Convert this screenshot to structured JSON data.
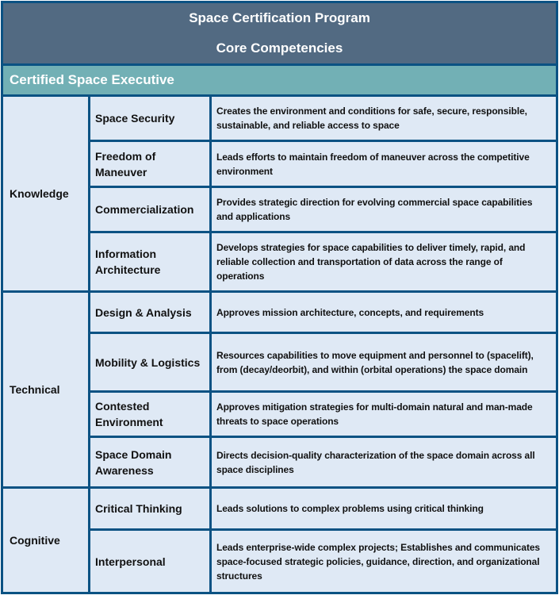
{
  "header": {
    "title": "Space Certification Program",
    "subtitle": "Core Competencies"
  },
  "level": "Certified Space Executive",
  "groups": [
    {
      "name": "Knowledge",
      "items": [
        {
          "competency": "Space Security",
          "description": "Creates the environment and conditions for safe, secure, responsible, sustainable, and reliable access to space"
        },
        {
          "competency": "Freedom of Maneuver",
          "description": "Leads efforts to maintain freedom of maneuver across the competitive environment"
        },
        {
          "competency": "Commercialization",
          "description": "Provides strategic direction for evolving commercial space capabilities and applications"
        },
        {
          "competency": "Information Architecture",
          "description": "Develops strategies for space capabilities to deliver timely, rapid, and reliable collection and transportation of data across the range of operations"
        }
      ]
    },
    {
      "name": "Technical",
      "items": [
        {
          "competency": "Design & Analysis",
          "description": "Approves mission architecture, concepts, and requirements"
        },
        {
          "competency": "Mobility & Logistics",
          "description": "Resources capabilities to move equipment and personnel to (spacelift), from (decay/deorbit), and within (orbital operations) the space domain"
        },
        {
          "competency": "Contested Environment",
          "description": "Approves mitigation strategies for multi-domain natural and man-made threats to space operations"
        },
        {
          "competency": "Space Domain Awareness",
          "description": "Directs decision-quality characterization of the space domain across all space disciplines"
        }
      ]
    },
    {
      "name": "Cognitive",
      "items": [
        {
          "competency": "Critical Thinking",
          "description": "Leads solutions to complex problems using critical thinking"
        },
        {
          "competency": "Interpersonal",
          "description": "Leads enterprise-wide complex projects; Establishes and communicates space-focused strategic policies, guidance, direction, and organizational structures"
        }
      ]
    }
  ],
  "colors": {
    "border": "#0b5283",
    "header": "#526a82",
    "level_band": "#72b0b5",
    "cell": "#dfe9f5"
  }
}
